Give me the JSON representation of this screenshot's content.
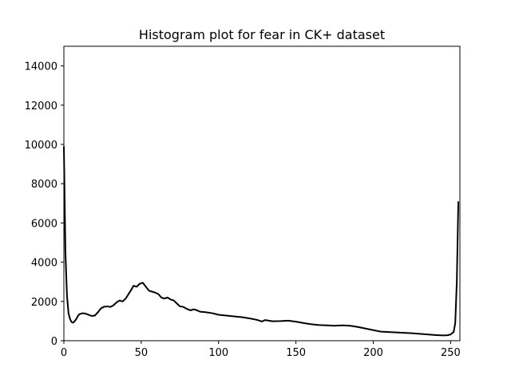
{
  "chart_data": {
    "type": "line",
    "title": "Histogram plot for fear in CK+ dataset",
    "xlabel": "",
    "ylabel": "",
    "xlim": [
      0,
      256
    ],
    "ylim": [
      0,
      15000
    ],
    "xticks": [
      0,
      50,
      100,
      150,
      200,
      250
    ],
    "yticks": [
      0,
      2000,
      4000,
      6000,
      8000,
      10000,
      12000,
      14000
    ],
    "grid": false,
    "line_color": "#000000",
    "series": [
      {
        "points": [
          [
            0,
            9900
          ],
          [
            1,
            4500
          ],
          [
            2,
            2300
          ],
          [
            3,
            1400
          ],
          [
            4,
            1100
          ],
          [
            5,
            950
          ],
          [
            6,
            920
          ],
          [
            7,
            1000
          ],
          [
            8,
            1100
          ],
          [
            9,
            1250
          ],
          [
            10,
            1350
          ],
          [
            12,
            1400
          ],
          [
            14,
            1380
          ],
          [
            16,
            1320
          ],
          [
            18,
            1260
          ],
          [
            20,
            1280
          ],
          [
            22,
            1450
          ],
          [
            24,
            1650
          ],
          [
            26,
            1730
          ],
          [
            28,
            1750
          ],
          [
            30,
            1720
          ],
          [
            32,
            1800
          ],
          [
            34,
            1950
          ],
          [
            36,
            2050
          ],
          [
            38,
            2000
          ],
          [
            40,
            2150
          ],
          [
            42,
            2400
          ],
          [
            44,
            2650
          ],
          [
            45,
            2800
          ],
          [
            47,
            2750
          ],
          [
            49,
            2900
          ],
          [
            51,
            2950
          ],
          [
            53,
            2750
          ],
          [
            55,
            2550
          ],
          [
            57,
            2500
          ],
          [
            59,
            2450
          ],
          [
            61,
            2380
          ],
          [
            63,
            2200
          ],
          [
            65,
            2150
          ],
          [
            67,
            2200
          ],
          [
            69,
            2100
          ],
          [
            71,
            2050
          ],
          [
            73,
            1900
          ],
          [
            75,
            1750
          ],
          [
            77,
            1730
          ],
          [
            80,
            1600
          ],
          [
            82,
            1550
          ],
          [
            84,
            1600
          ],
          [
            86,
            1550
          ],
          [
            88,
            1480
          ],
          [
            92,
            1450
          ],
          [
            96,
            1400
          ],
          [
            100,
            1320
          ],
          [
            105,
            1280
          ],
          [
            110,
            1240
          ],
          [
            115,
            1200
          ],
          [
            120,
            1140
          ],
          [
            125,
            1060
          ],
          [
            128,
            980
          ],
          [
            130,
            1050
          ],
          [
            135,
            990
          ],
          [
            140,
            1000
          ],
          [
            145,
            1020
          ],
          [
            150,
            970
          ],
          [
            155,
            900
          ],
          [
            160,
            840
          ],
          [
            165,
            800
          ],
          [
            170,
            780
          ],
          [
            175,
            760
          ],
          [
            180,
            780
          ],
          [
            185,
            760
          ],
          [
            190,
            700
          ],
          [
            195,
            620
          ],
          [
            200,
            540
          ],
          [
            205,
            460
          ],
          [
            210,
            440
          ],
          [
            215,
            420
          ],
          [
            220,
            400
          ],
          [
            225,
            380
          ],
          [
            230,
            350
          ],
          [
            235,
            320
          ],
          [
            240,
            290
          ],
          [
            245,
            270
          ],
          [
            248,
            280
          ],
          [
            250,
            320
          ],
          [
            252,
            450
          ],
          [
            253,
            900
          ],
          [
            254,
            3000
          ],
          [
            255,
            7100
          ]
        ]
      }
    ]
  }
}
